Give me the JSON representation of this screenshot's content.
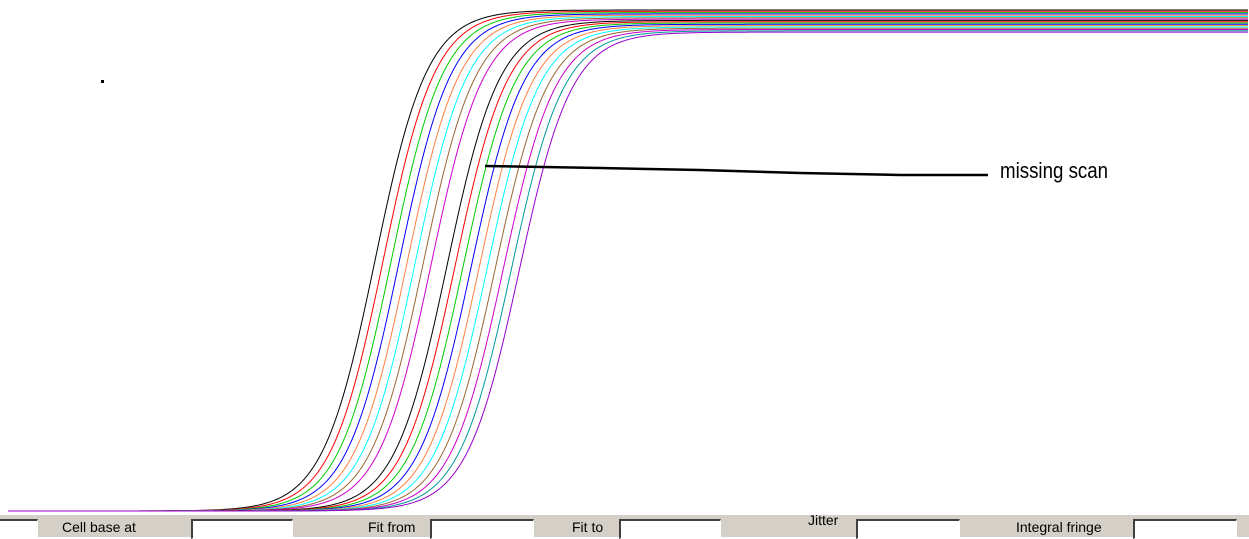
{
  "annotation": {
    "text": "missing scan"
  },
  "colors": {
    "background": "#ffffff",
    "panel": "#d4d0c8",
    "pointer_line": "#000000",
    "curve_palette": [
      "#000000",
      "#ff0000",
      "#00cc00",
      "#0000ff",
      "#ff8040",
      "#00ffff",
      "#996633",
      "#cc00cc"
    ]
  },
  "bottom_bar": {
    "fields": [
      {
        "label": "",
        "value": ""
      },
      {
        "label": "Cell base at",
        "value": ""
      },
      {
        "label": "Fit from",
        "value": ""
      },
      {
        "label": "Fit to",
        "value": ""
      },
      {
        "label": "Jitter",
        "value": ""
      },
      {
        "label": "Integral fringe",
        "value": ""
      }
    ]
  },
  "chart_data": {
    "type": "line",
    "description_series_count": 18,
    "series": [
      {
        "color": "#000000",
        "midpoint_x": 375
      },
      {
        "color": "#ff0000",
        "midpoint_x": 383
      },
      {
        "color": "#00cc00",
        "midpoint_x": 391
      },
      {
        "color": "#0000ff",
        "midpoint_x": 399
      },
      {
        "color": "#ff8040",
        "midpoint_x": 407
      },
      {
        "color": "#00ffff",
        "midpoint_x": 415
      },
      {
        "color": "#996633",
        "midpoint_x": 423
      },
      {
        "color": "#cc00cc",
        "midpoint_x": 431
      },
      {
        "color": "#000000",
        "midpoint_x": 447
      },
      {
        "color": "#ff0000",
        "midpoint_x": 455
      },
      {
        "color": "#00cc00",
        "midpoint_x": 463
      },
      {
        "color": "#0000ff",
        "midpoint_x": 471
      },
      {
        "color": "#ff8040",
        "midpoint_x": 479
      },
      {
        "color": "#00ffff",
        "midpoint_x": 487
      },
      {
        "color": "#996633",
        "midpoint_x": 495
      },
      {
        "color": "#cc00cc",
        "midpoint_x": 503
      },
      {
        "color": "#009999",
        "midpoint_x": 511
      },
      {
        "color": "#9900cc",
        "midpoint_x": 519
      }
    ],
    "title": "",
    "xlabel": "",
    "ylabel": "",
    "grid": false,
    "legend": "none"
  }
}
